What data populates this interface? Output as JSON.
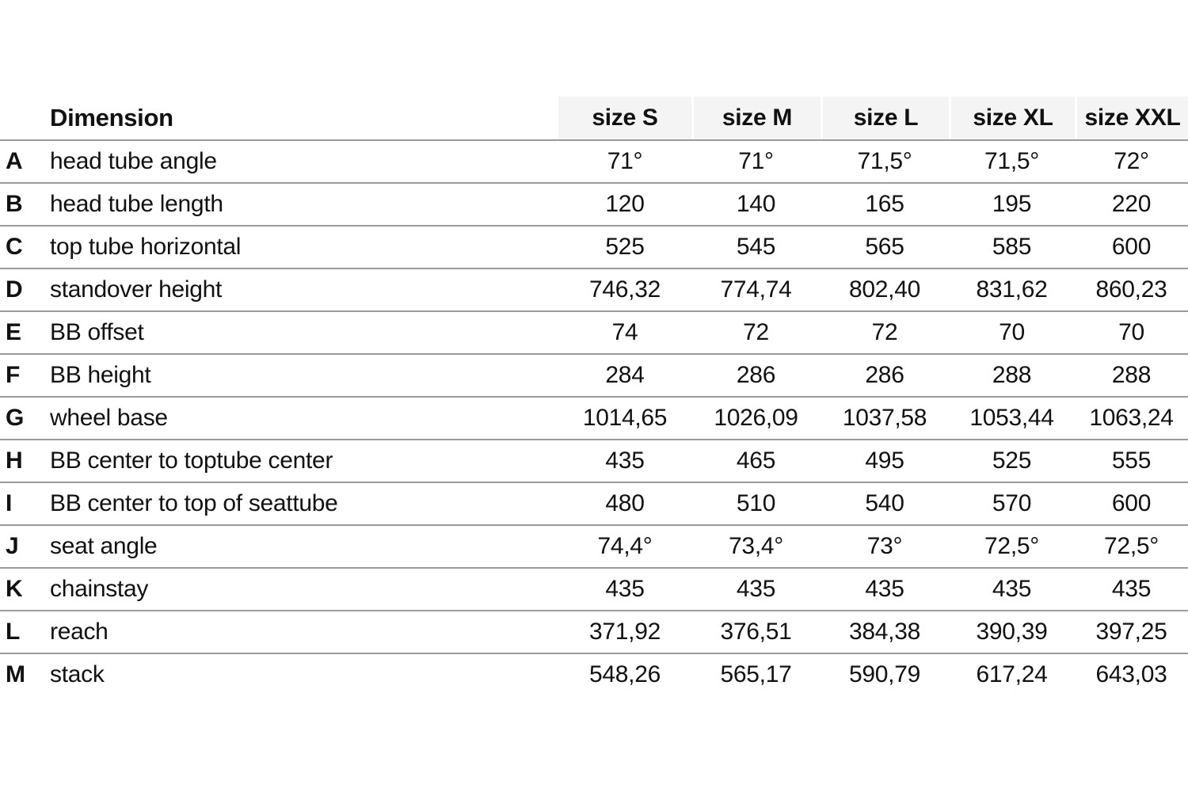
{
  "table": {
    "header": {
      "dimension_label": "Dimension",
      "size_labels": [
        "size S",
        "size M",
        "size L",
        "size XL",
        "size XXL"
      ]
    },
    "rows": [
      {
        "letter": "A",
        "name": "head tube angle",
        "values": [
          "71°",
          "71°",
          "71,5°",
          "71,5°",
          "72°"
        ]
      },
      {
        "letter": "B",
        "name": "head tube length",
        "values": [
          "120",
          "140",
          "165",
          "195",
          "220"
        ]
      },
      {
        "letter": "C",
        "name": "top tube horizontal",
        "values": [
          "525",
          "545",
          "565",
          "585",
          "600"
        ]
      },
      {
        "letter": "D",
        "name": "standover height",
        "values": [
          "746,32",
          "774,74",
          "802,40",
          "831,62",
          "860,23"
        ]
      },
      {
        "letter": "E",
        "name": "BB offset",
        "values": [
          "74",
          "72",
          "72",
          "70",
          "70"
        ]
      },
      {
        "letter": "F",
        "name": "BB height",
        "values": [
          "284",
          "286",
          "286",
          "288",
          "288"
        ]
      },
      {
        "letter": "G",
        "name": "wheel base",
        "values": [
          "1014,65",
          "1026,09",
          "1037,58",
          "1053,44",
          "1063,24"
        ]
      },
      {
        "letter": "H",
        "name": "BB center to toptube center",
        "values": [
          "435",
          "465",
          "495",
          "525",
          "555"
        ]
      },
      {
        "letter": "I",
        "name": "BB center to top of seattube",
        "values": [
          "480",
          "510",
          "540",
          "570",
          "600"
        ]
      },
      {
        "letter": "J",
        "name": "seat angle",
        "values": [
          "74,4°",
          "73,4°",
          "73°",
          "72,5°",
          "72,5°"
        ]
      },
      {
        "letter": "K",
        "name": "chainstay",
        "values": [
          "435",
          "435",
          "435",
          "435",
          "435"
        ]
      },
      {
        "letter": "L",
        "name": "reach",
        "values": [
          "371,92",
          "376,51",
          "384,38",
          "390,39",
          "397,25"
        ]
      },
      {
        "letter": "M",
        "name": "stack",
        "values": [
          "548,26",
          "565,17",
          "590,79",
          "617,24",
          "643,03"
        ]
      }
    ]
  },
  "colors": {
    "text": "#111111",
    "rule": "#9a9a9a",
    "header_bg": "#f4f4f4",
    "page_bg": "#ffffff"
  }
}
